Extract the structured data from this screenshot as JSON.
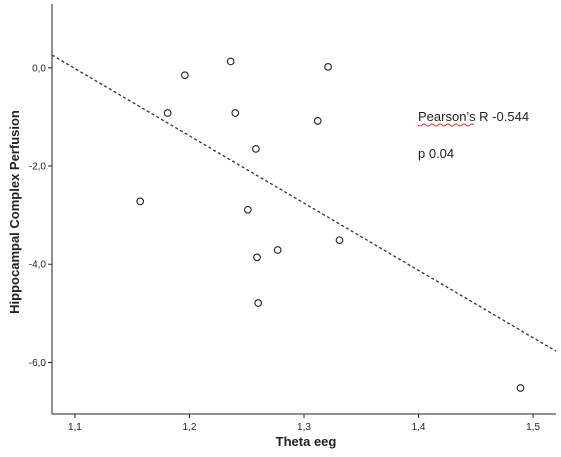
{
  "chart_data": {
    "type": "scatter",
    "title": "",
    "xlabel": "Theta eeg",
    "ylabel": "Hippocampal Complex Perfusion",
    "xlim": [
      1.08,
      1.52
    ],
    "ylim": [
      -7.05,
      1.3
    ],
    "x_ticks": [
      1.1,
      1.2,
      1.3,
      1.4,
      1.5
    ],
    "x_tick_labels": [
      "1,1",
      "1,2",
      "1,3",
      "1,4",
      "1,5"
    ],
    "y_ticks": [
      0,
      -2,
      -4,
      -6
    ],
    "y_tick_labels": [
      "0,0",
      "-2,0",
      "-4,0",
      "-6,0"
    ],
    "grid": false,
    "points": [
      {
        "x": 1.157,
        "y": -2.72
      },
      {
        "x": 1.181,
        "y": -0.92
      },
      {
        "x": 1.196,
        "y": -0.15
      },
      {
        "x": 1.236,
        "y": 0.13
      },
      {
        "x": 1.24,
        "y": -0.92
      },
      {
        "x": 1.251,
        "y": -2.89
      },
      {
        "x": 1.258,
        "y": -1.65
      },
      {
        "x": 1.259,
        "y": -3.86
      },
      {
        "x": 1.26,
        "y": -4.79
      },
      {
        "x": 1.277,
        "y": -3.71
      },
      {
        "x": 1.312,
        "y": -1.08
      },
      {
        "x": 1.321,
        "y": 0.02
      },
      {
        "x": 1.331,
        "y": -3.51
      },
      {
        "x": 1.489,
        "y": -6.52
      }
    ],
    "fit_line": {
      "x": [
        1.08,
        1.52
      ],
      "y": [
        0.26,
        -5.77
      ],
      "style": "dashed"
    },
    "annotations": [
      "Pearson’s R -0.544",
      "p 0.04"
    ]
  }
}
